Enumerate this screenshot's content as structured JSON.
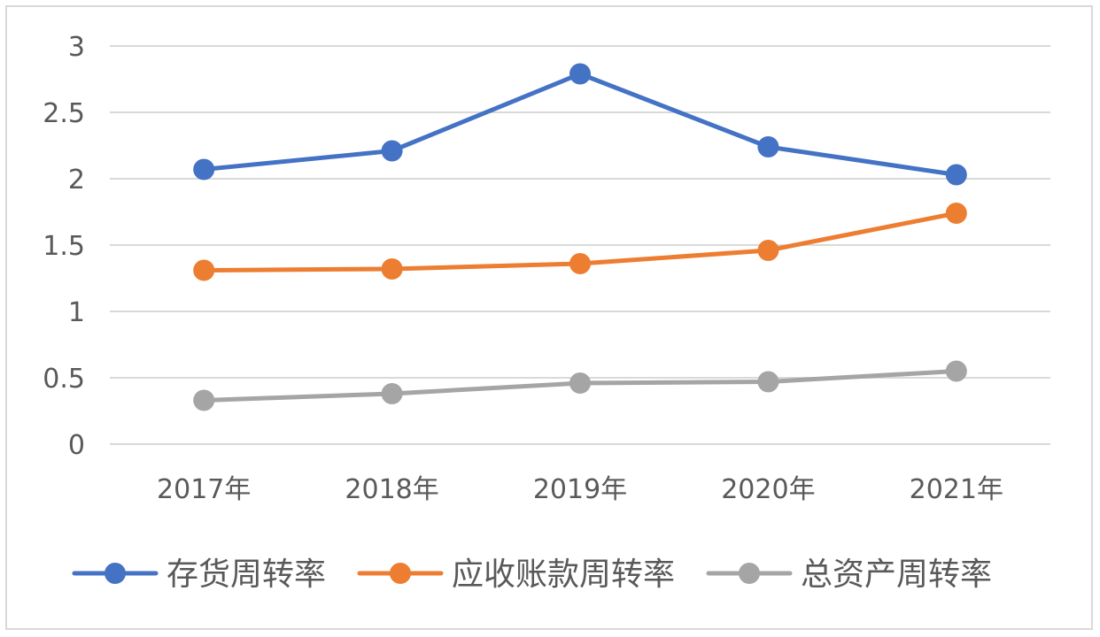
{
  "chart_data": {
    "type": "line",
    "title": "",
    "xlabel": "",
    "ylabel": "",
    "categories": [
      "2017年",
      "2018年",
      "2019年",
      "2020年",
      "2021年"
    ],
    "ylim": [
      0,
      3
    ],
    "yticks": [
      "0",
      "0.5",
      "1",
      "1.5",
      "2",
      "2.5",
      "3"
    ],
    "grid": true,
    "legend_position": "bottom",
    "series": [
      {
        "name": "存货周转率",
        "color": "#4472c4",
        "values": [
          2.07,
          2.21,
          2.79,
          2.24,
          2.03
        ]
      },
      {
        "name": "应收账款周转率",
        "color": "#ed7d31",
        "values": [
          1.31,
          1.32,
          1.36,
          1.46,
          1.74
        ]
      },
      {
        "name": "总资产周转率",
        "color": "#a5a5a5",
        "values": [
          0.33,
          0.38,
          0.46,
          0.47,
          0.55
        ]
      }
    ]
  }
}
